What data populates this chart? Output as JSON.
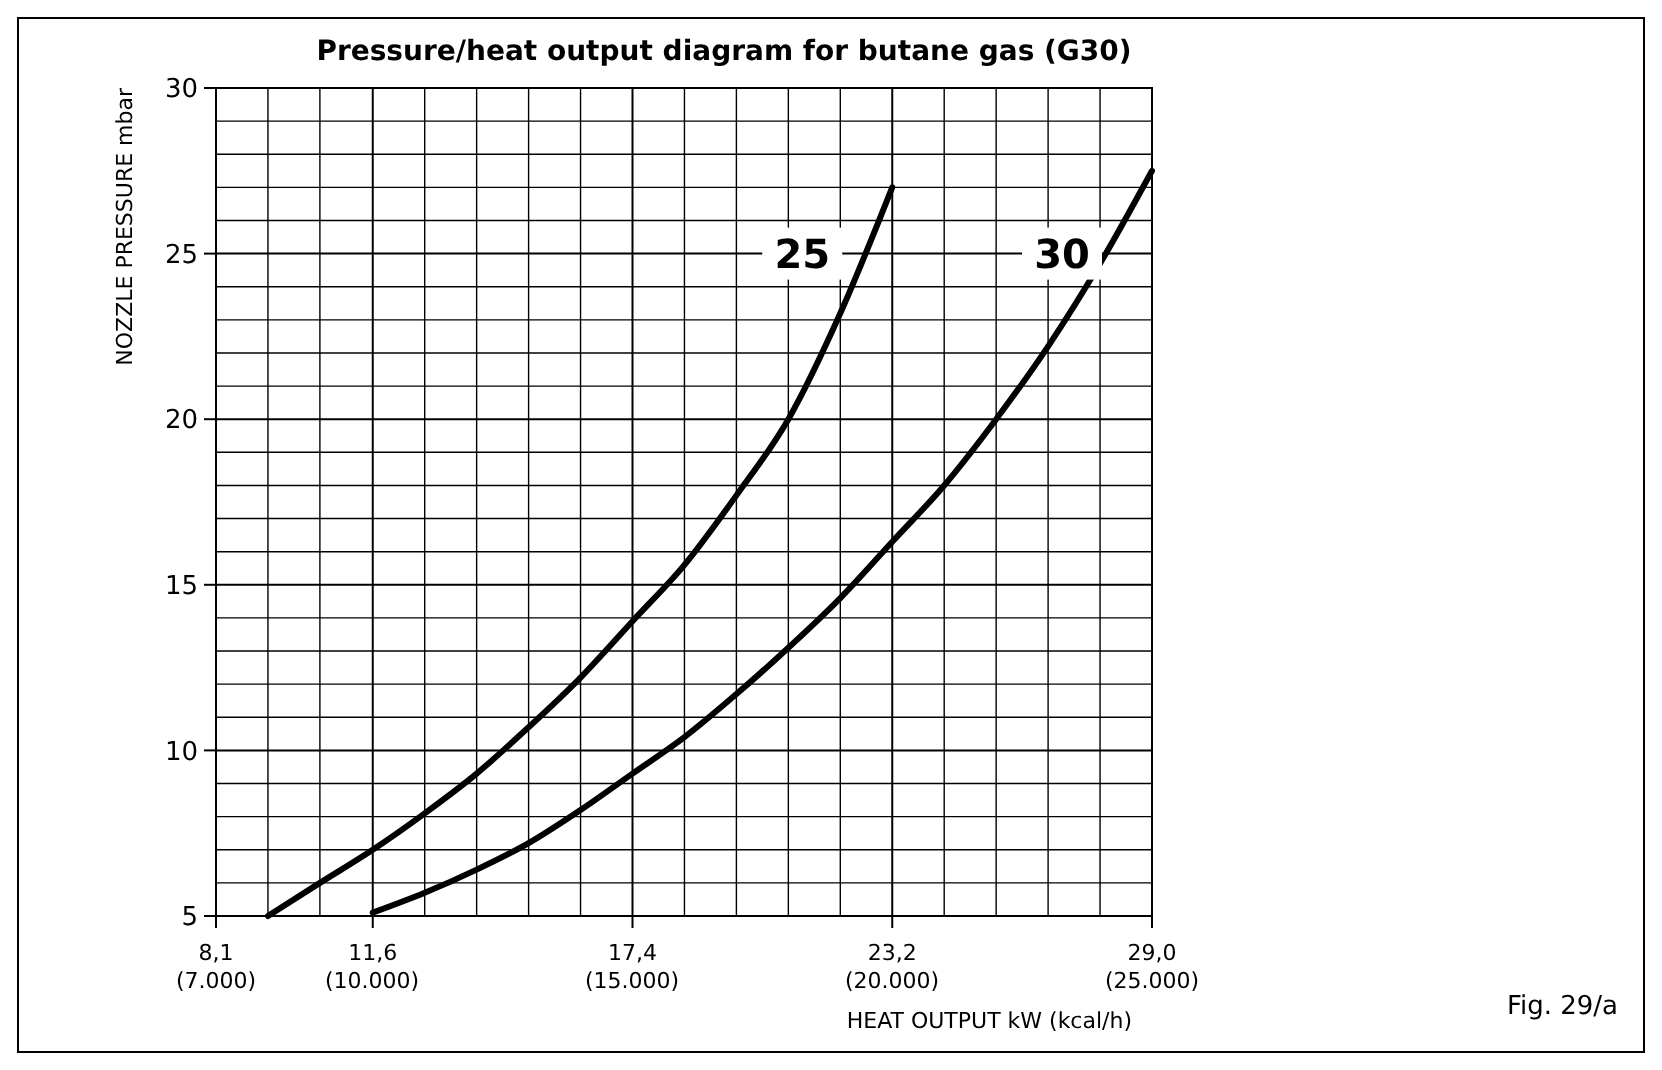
{
  "chart_data": {
    "type": "line",
    "title": "Pressure/heat output diagram for butane gas (G30)",
    "xlabel": "HEAT OUTPUT kW (kcal/h)",
    "ylabel": "NOZZLE PRESSURE mbar",
    "annotations": [
      "Fig. 29/a"
    ],
    "series": [
      {
        "name": "25",
        "color": "#000000",
        "x": [
          9.26,
          10.42,
          11.6,
          12.76,
          13.92,
          15.08,
          16.24,
          17.4,
          18.56,
          19.72,
          20.88,
          22.04,
          23.2
        ],
        "values": [
          5,
          6,
          7,
          8.1,
          9.3,
          10.7,
          12.2,
          13.9,
          15.6,
          17.7,
          20,
          23.2,
          27
        ]
      },
      {
        "name": "30",
        "color": "#000000",
        "x": [
          11.6,
          12.76,
          13.92,
          15.08,
          16.24,
          17.4,
          18.56,
          19.72,
          20.88,
          22.04,
          23.2,
          24.36,
          25.52,
          26.68,
          27.84,
          29.0
        ],
        "values": [
          5.1,
          5.7,
          6.4,
          7.2,
          8.2,
          9.3,
          10.4,
          11.7,
          13.1,
          14.6,
          16.3,
          18,
          20,
          22.2,
          24.7,
          27.5
        ]
      }
    ],
    "xlim": [
      8.1,
      29.0
    ],
    "xticks": [
      {
        "value": 8.1,
        "label": "8,1"
      },
      {
        "value": 9.26,
        "label": null
      },
      {
        "value": 10.42,
        "label": null
      },
      {
        "value": 11.6,
        "label": "11,6"
      },
      {
        "value": 12.76,
        "label": null
      },
      {
        "value": 13.92,
        "label": null
      },
      {
        "value": 15.08,
        "label": null
      },
      {
        "value": 16.24,
        "label": null
      },
      {
        "value": 17.4,
        "label": "17,4"
      },
      {
        "value": 18.56,
        "label": null
      },
      {
        "value": 19.72,
        "label": null
      },
      {
        "value": 20.88,
        "label": null
      },
      {
        "value": 22.04,
        "label": null
      },
      {
        "value": 23.2,
        "label": "23,2"
      },
      {
        "value": 24.36,
        "label": null
      },
      {
        "value": 25.52,
        "label": null
      },
      {
        "value": 26.68,
        "label": null
      },
      {
        "value": 27.84,
        "label": null
      },
      {
        "value": 29.0,
        "label": "29,0"
      }
    ],
    "ylim": [
      5,
      30
    ],
    "yticks": [
      5,
      {
        "value": 6,
        "label": null
      },
      {
        "value": 7,
        "label": null
      },
      {
        "value": 8,
        "label": null
      },
      {
        "value": 9,
        "label": null
      },
      10,
      {
        "value": 11,
        "label": null
      },
      {
        "value": 12,
        "label": null
      },
      {
        "value": 13,
        "label": null
      },
      {
        "value": 14,
        "label": null
      },
      15,
      {
        "value": 16,
        "label": null
      },
      {
        "value": 17,
        "label": null
      },
      {
        "value": 18,
        "label": null
      },
      {
        "value": 19,
        "label": null
      },
      20,
      {
        "value": 21,
        "label": null
      },
      {
        "value": 22,
        "label": null
      },
      {
        "value": 23,
        "label": null
      },
      {
        "value": 24,
        "label": null
      },
      25,
      {
        "value": 26,
        "label": null
      },
      {
        "value": 27,
        "label": null
      },
      {
        "value": 28,
        "label": null
      },
      {
        "value": 29,
        "label": null
      },
      30
    ],
    "x2lim": [
      7000,
      25000
    ],
    "x2ticks": [
      {
        "value": 7000,
        "label": "(7.000)"
      },
      {
        "value": 10000,
        "label": "(10.000)"
      },
      {
        "value": 15000,
        "label": "(15.000)"
      },
      {
        "value": 20000,
        "label": "(20.000)"
      },
      {
        "value": 25000,
        "label": "(25.000)"
      }
    ],
    "grid": true,
    "marker": "none",
    "line_style": "solid"
  }
}
